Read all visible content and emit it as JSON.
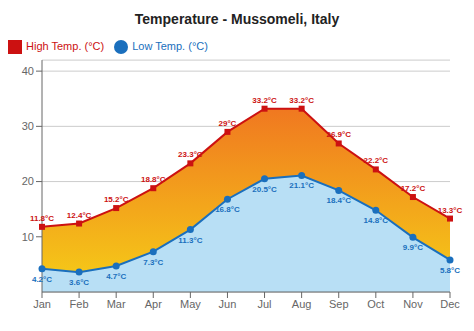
{
  "chart_data": {
    "type": "line",
    "title": "Temperature - Mussomeli, Italy",
    "categories": [
      "Jan",
      "Feb",
      "Mar",
      "Apr",
      "May",
      "Jun",
      "Jul",
      "Aug",
      "Sep",
      "Oct",
      "Nov",
      "Dec"
    ],
    "series": [
      {
        "name": "Low Temp. (°C)",
        "color": "#1a6fbd",
        "marker": "circle",
        "values": [
          4.2,
          3.6,
          4.7,
          7.3,
          11.3,
          16.8,
          20.5,
          21.1,
          18.4,
          14.8,
          9.9,
          5.8
        ],
        "value_labels": [
          "4.2°C",
          "3.6°C",
          "4.7°C",
          "7.3°C",
          "11.3°C",
          "16.8°C",
          "20.5°C",
          "21.1°C",
          "18.4°C",
          "14.8°C",
          "9.9°C",
          "5.8°C"
        ]
      },
      {
        "name": "High Temp. (°C)",
        "color": "#cc1111",
        "marker": "square",
        "values": [
          11.8,
          12.4,
          15.2,
          18.8,
          23.3,
          29.0,
          33.2,
          33.2,
          26.9,
          22.2,
          17.2,
          13.3
        ],
        "value_labels": [
          "11.8°C",
          "12.4°C",
          "15.2°C",
          "18.8°C",
          "23.3°C",
          "29°C",
          "33.2°C",
          "33.2°C",
          "26.9°C",
          "22.2°C",
          "17.2°C",
          "13.3°C"
        ]
      }
    ],
    "ylim": [
      0,
      42
    ],
    "yticks": [
      10,
      20,
      30,
      40
    ],
    "grid": true,
    "legend": "upper left",
    "data_labels": true
  }
}
